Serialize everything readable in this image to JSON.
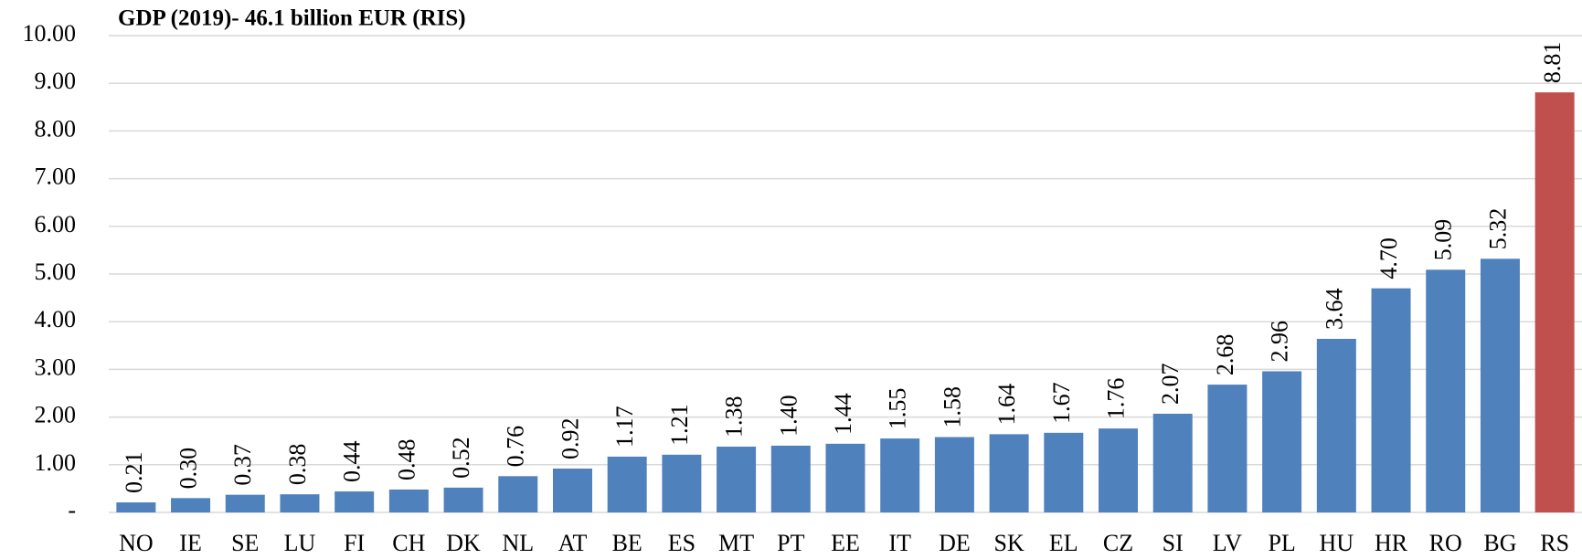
{
  "chart_data": {
    "type": "bar",
    "title": "GDP (2019)- 46.1 billion EUR (RIS)",
    "categories": [
      "NO",
      "IE",
      "SE",
      "LU",
      "FI",
      "CH",
      "DK",
      "NL",
      "AT",
      "BE",
      "ES",
      "MT",
      "PT",
      "EE",
      "IT",
      "DE",
      "SK",
      "EL",
      "CZ",
      "SI",
      "LV",
      "PL",
      "HU",
      "HR",
      "RO",
      "BG",
      "RS"
    ],
    "values": [
      0.21,
      0.3,
      0.37,
      0.38,
      0.44,
      0.48,
      0.52,
      0.76,
      0.92,
      1.17,
      1.21,
      1.38,
      1.4,
      1.44,
      1.55,
      1.58,
      1.64,
      1.67,
      1.76,
      2.07,
      2.68,
      2.96,
      3.64,
      4.7,
      5.09,
      5.32,
      8.81
    ],
    "value_labels": [
      "0.21",
      "0.30",
      "0.37",
      "0.38",
      "0.44",
      "0.48",
      "0.52",
      "0.76",
      "0.92",
      "1.17",
      "1.21",
      "1.38",
      "1.40",
      "1.44",
      "1.55",
      "1.58",
      "1.64",
      "1.67",
      "1.76",
      "2.07",
      "2.68",
      "2.96",
      "3.64",
      "4.70",
      "5.09",
      "5.32",
      "8.81"
    ],
    "colors": [
      "#4f81bd",
      "#4f81bd",
      "#4f81bd",
      "#4f81bd",
      "#4f81bd",
      "#4f81bd",
      "#4f81bd",
      "#4f81bd",
      "#4f81bd",
      "#4f81bd",
      "#4f81bd",
      "#4f81bd",
      "#4f81bd",
      "#4f81bd",
      "#4f81bd",
      "#4f81bd",
      "#4f81bd",
      "#4f81bd",
      "#4f81bd",
      "#4f81bd",
      "#4f81bd",
      "#4f81bd",
      "#4f81bd",
      "#4f81bd",
      "#4f81bd",
      "#4f81bd",
      "#c0504d"
    ],
    "ylim": [
      0,
      10
    ],
    "yticks": [
      {
        "value": 0,
        "label": "-"
      },
      {
        "value": 1,
        "label": "1.00"
      },
      {
        "value": 2,
        "label": "2.00"
      },
      {
        "value": 3,
        "label": "3.00"
      },
      {
        "value": 4,
        "label": "4.00"
      },
      {
        "value": 5,
        "label": "5.00"
      },
      {
        "value": 6,
        "label": "6.00"
      },
      {
        "value": 7,
        "label": "7.00"
      },
      {
        "value": 8,
        "label": "8.00"
      },
      {
        "value": 9,
        "label": "9.00"
      },
      {
        "value": 10,
        "label": "10.00"
      }
    ],
    "grid": true
  }
}
